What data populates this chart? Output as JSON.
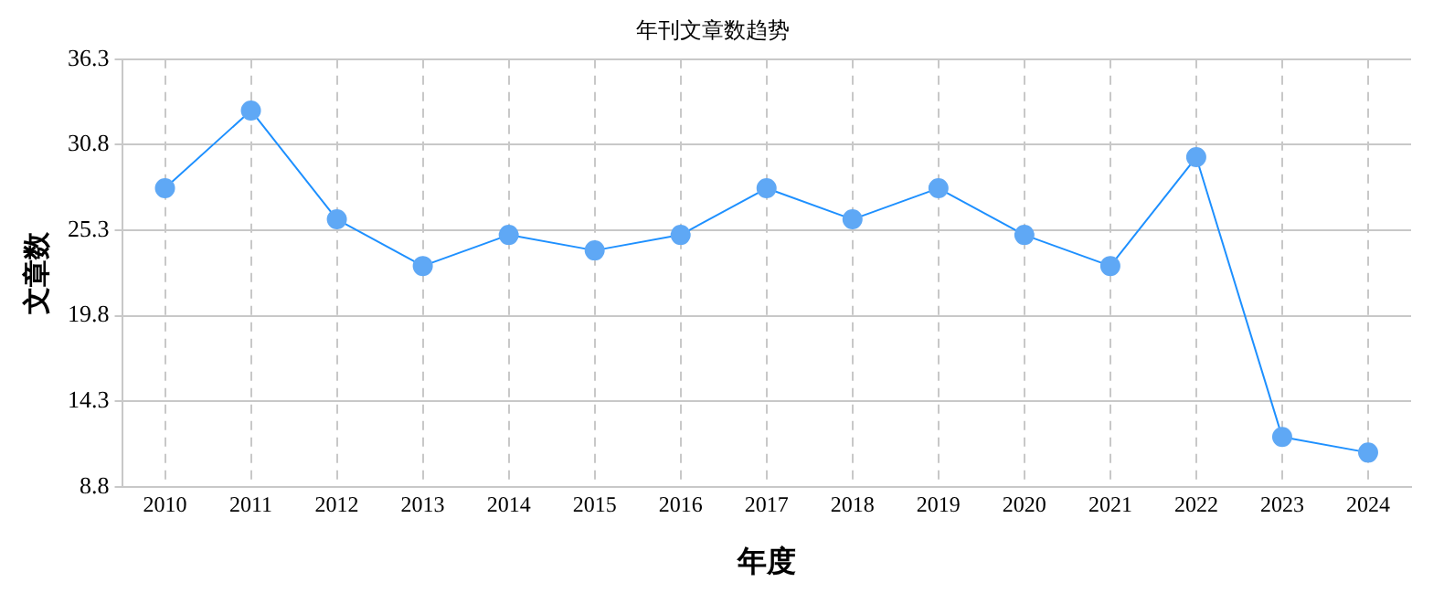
{
  "chart_data": {
    "type": "line",
    "title": "年刊文章数趋势",
    "xlabel": "年度",
    "ylabel": "文章数",
    "categories": [
      "2010",
      "2011",
      "2012",
      "2013",
      "2014",
      "2015",
      "2016",
      "2017",
      "2018",
      "2019",
      "2020",
      "2021",
      "2022",
      "2023",
      "2024"
    ],
    "series": [
      {
        "color": "#1e90ff",
        "values": [
          28,
          33,
          26,
          23,
          25,
          24,
          25,
          28,
          26,
          28,
          25,
          23,
          30,
          12,
          11
        ]
      }
    ],
    "ylim": [
      8.8,
      36.3
    ],
    "yticks": [
      8.8,
      14.3,
      19.8,
      25.3,
      30.8,
      36.3
    ],
    "grid": true,
    "marker": "circle",
    "line_style": "solid",
    "legend": false
  }
}
